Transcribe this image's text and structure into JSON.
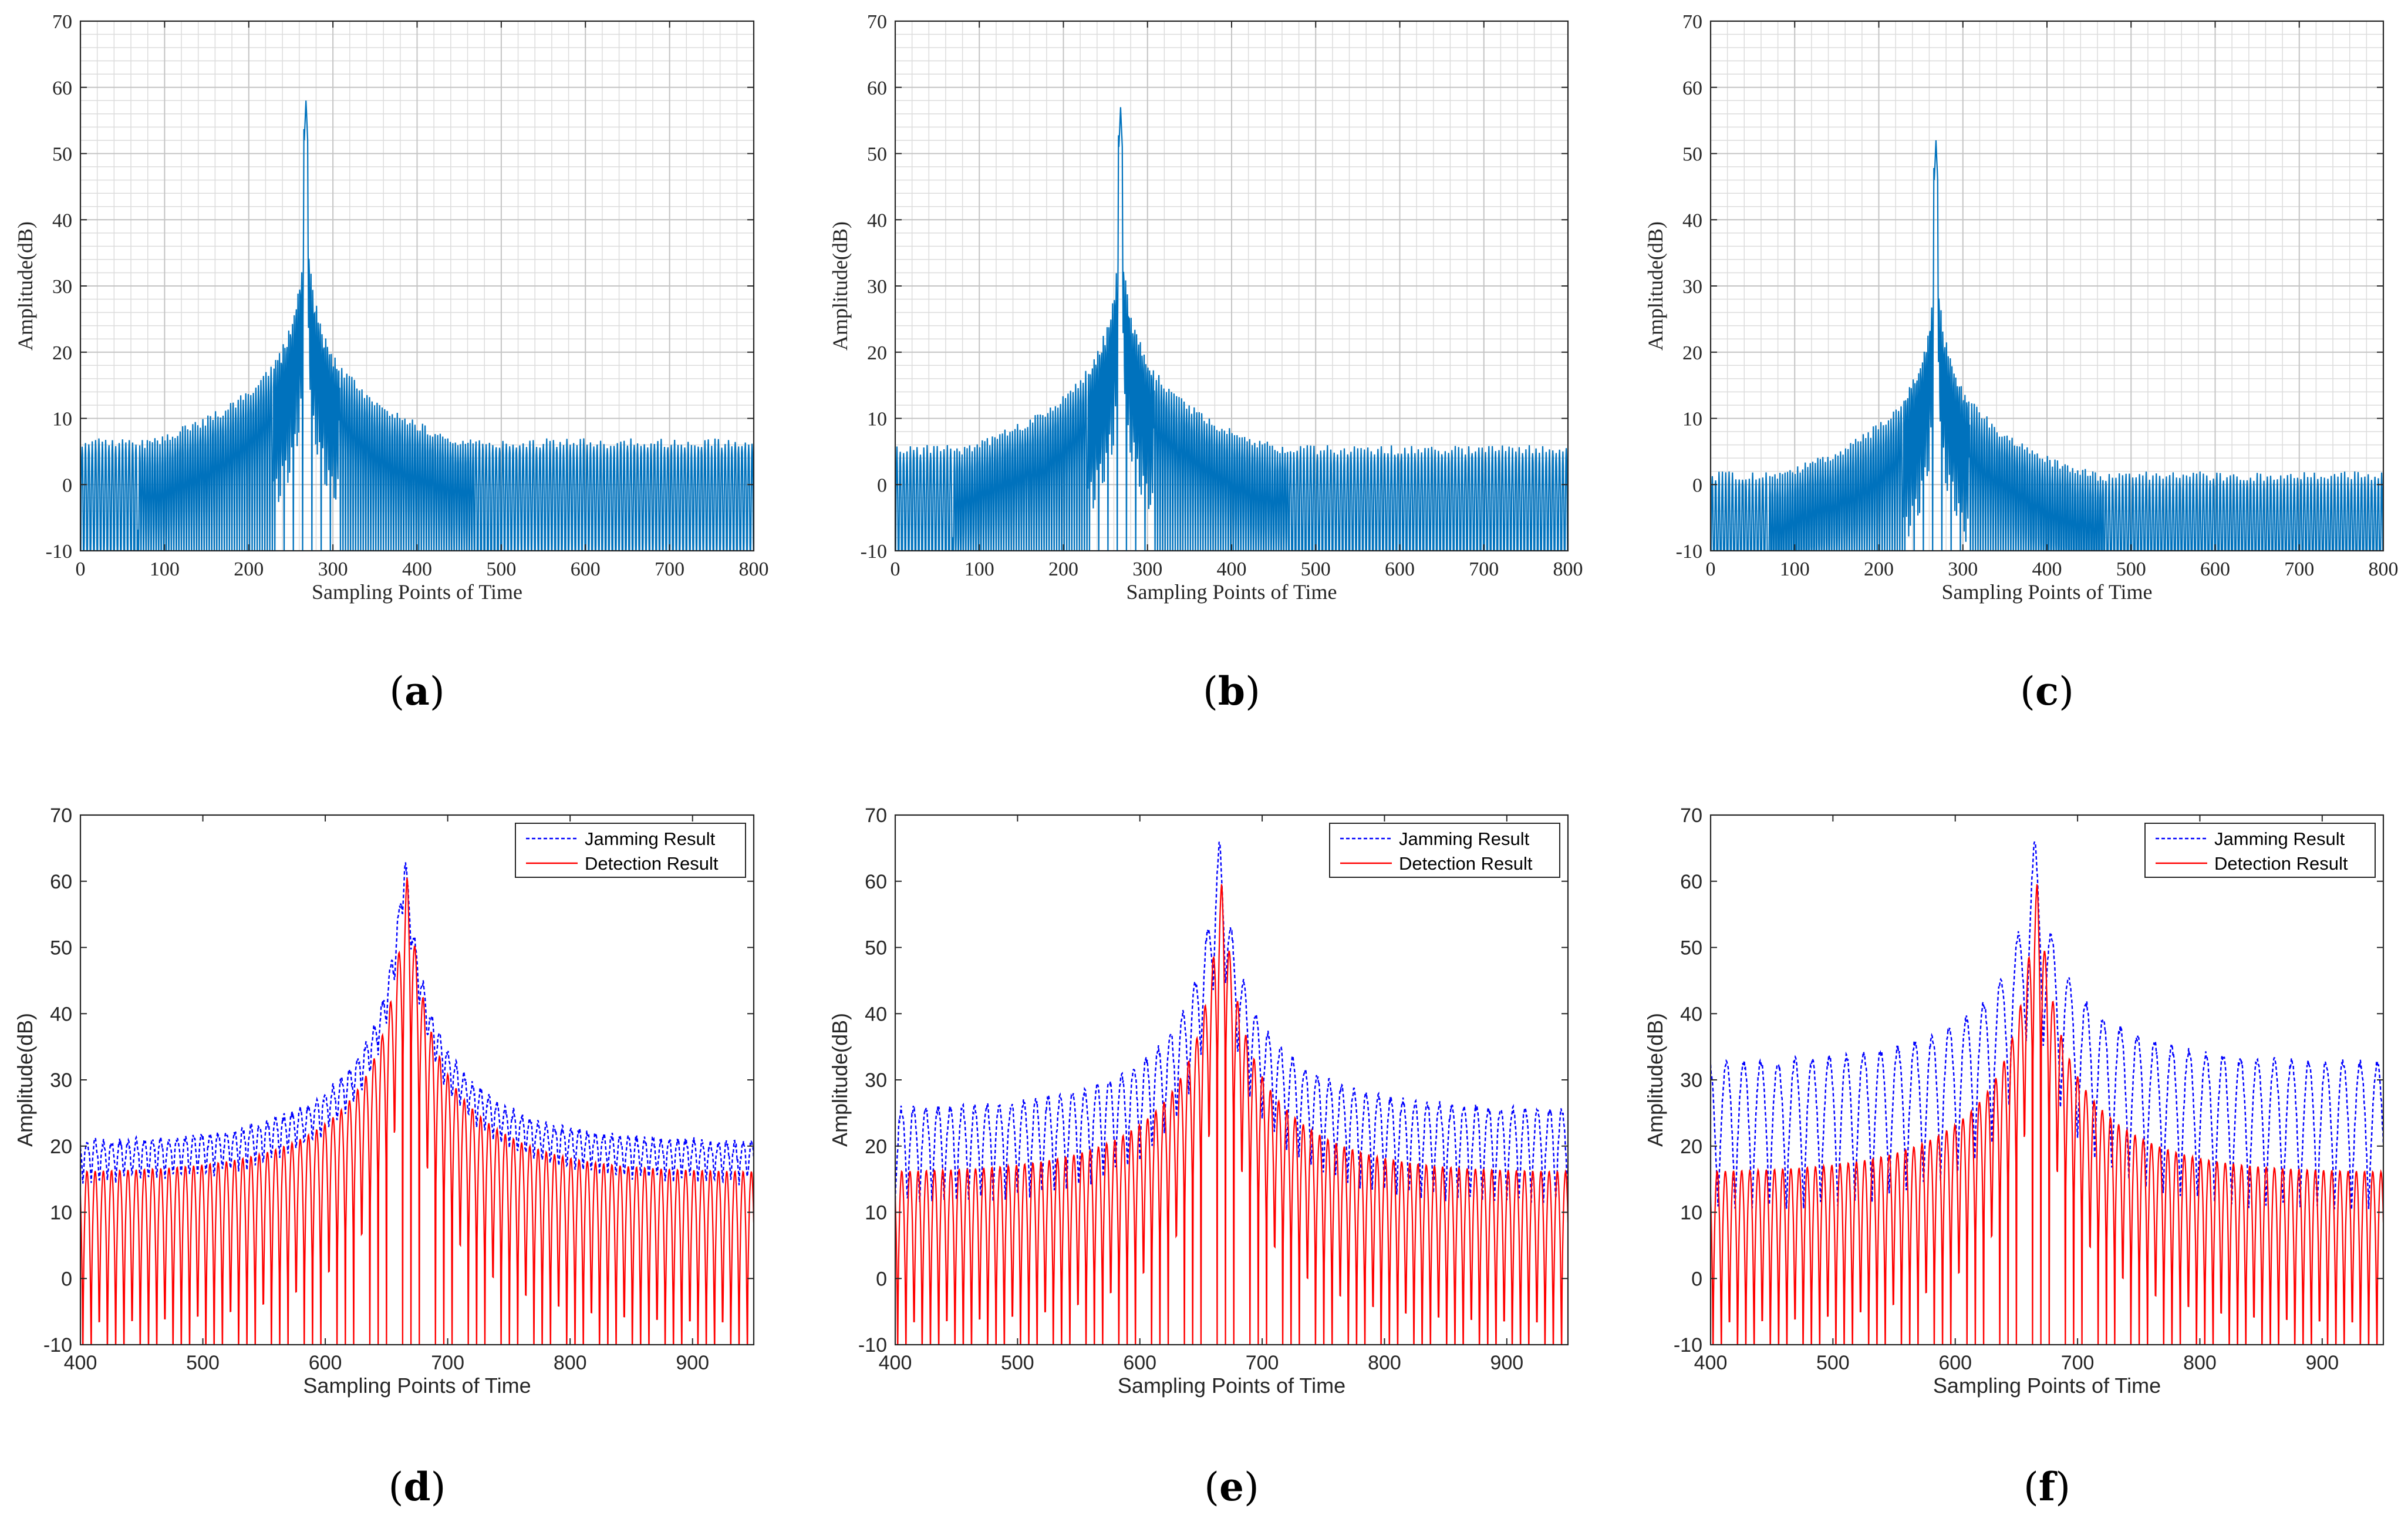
{
  "chart_data": [
    {
      "id": "a",
      "caption": "(a)",
      "type": "line",
      "xlabel": "Sampling Points of Time",
      "ylabel": "Amplitude(dB)",
      "xlim": [
        0,
        800
      ],
      "ylim": [
        -10,
        70
      ],
      "xticks": [
        0,
        100,
        200,
        300,
        400,
        500,
        600,
        700,
        800
      ],
      "yticks": [
        -10,
        0,
        10,
        20,
        30,
        40,
        50,
        60,
        70
      ],
      "grid": "on (major and minor)",
      "legend": null,
      "series": [
        {
          "color": "#0072BD",
          "style": "solid",
          "peak_x": 268,
          "peak_y": 58,
          "floor_y": 7,
          "shape": "sidelobe spectrum with main lobe near 268"
        }
      ]
    },
    {
      "id": "b",
      "caption": "(b)",
      "type": "line",
      "xlabel": "Sampling Points of Time",
      "ylabel": "Amplitude(dB)",
      "xlim": [
        0,
        800
      ],
      "ylim": [
        -10,
        70
      ],
      "xticks": [
        0,
        100,
        200,
        300,
        400,
        500,
        600,
        700,
        800
      ],
      "yticks": [
        -10,
        0,
        10,
        20,
        30,
        40,
        50,
        60,
        70
      ],
      "grid": "on (major and minor)",
      "legend": null,
      "series": [
        {
          "color": "#0072BD",
          "style": "solid",
          "peak_x": 268,
          "peak_y": 57,
          "floor_y": 6,
          "shape": "sidelobe spectrum with main lobe near 268"
        }
      ]
    },
    {
      "id": "c",
      "caption": "(c)",
      "type": "line",
      "xlabel": "Sampling Points of Time",
      "ylabel": "Amplitude(dB)",
      "xlim": [
        0,
        800
      ],
      "ylim": [
        -10,
        70
      ],
      "xticks": [
        0,
        100,
        200,
        300,
        400,
        500,
        600,
        700,
        800
      ],
      "yticks": [
        -10,
        0,
        10,
        20,
        30,
        40,
        50,
        60,
        70
      ],
      "grid": "on (major and minor)",
      "legend": null,
      "series": [
        {
          "color": "#0072BD",
          "style": "solid",
          "peak_x": 268,
          "peak_y": 52,
          "floor_y": 2,
          "shape": "sidelobe spectrum with main lobe near 268"
        }
      ]
    },
    {
      "id": "d",
      "caption": "(d)",
      "type": "line",
      "xlabel": "Sampling Points of Time",
      "ylabel": "Amplitude(dB)",
      "xlim": [
        400,
        950
      ],
      "ylim": [
        -10,
        70
      ],
      "xticks": [
        400,
        500,
        600,
        700,
        800,
        900
      ],
      "yticks": [
        -10,
        0,
        10,
        20,
        30,
        40,
        50,
        60,
        70
      ],
      "grid": "off",
      "legend": "top-right",
      "series": [
        {
          "name": "Jamming Result",
          "color": "#0000FF",
          "style": "dotted",
          "peak_x": 665,
          "peak_y": 63,
          "edge_y": 19,
          "ripple": 1
        },
        {
          "name": "Detection Result",
          "color": "#FF0000",
          "style": "solid",
          "peak_x": 667,
          "peak_y": 61,
          "edge_y": 16
        }
      ]
    },
    {
      "id": "e",
      "caption": "(e)",
      "type": "line",
      "xlabel": "Sampling Points of Time",
      "ylabel": "Amplitude(dB)",
      "xlim": [
        400,
        950
      ],
      "ylim": [
        -10,
        70
      ],
      "xticks": [
        400,
        500,
        600,
        700,
        800,
        900
      ],
      "yticks": [
        -10,
        0,
        10,
        20,
        30,
        40,
        50,
        60,
        70
      ],
      "grid": "off",
      "legend": "top-right",
      "series": [
        {
          "name": "Jamming Result",
          "color": "#0000FF",
          "style": "dotted",
          "peak_x": 665,
          "peak_y": 62,
          "edge_y": 21,
          "ripple": 2
        },
        {
          "name": "Detection Result",
          "color": "#FF0000",
          "style": "solid",
          "peak_x": 667,
          "peak_y": 60,
          "edge_y": 16
        }
      ]
    },
    {
      "id": "f",
      "caption": "(f)",
      "type": "line",
      "xlabel": "Sampling Points of Time",
      "ylabel": "Amplitude(dB)",
      "xlim": [
        400,
        950
      ],
      "ylim": [
        -10,
        70
      ],
      "xticks": [
        400,
        500,
        600,
        700,
        800,
        900
      ],
      "yticks": [
        -10,
        0,
        10,
        20,
        30,
        40,
        50,
        60,
        70
      ],
      "grid": "off",
      "legend": "top-right",
      "series": [
        {
          "name": "Jamming Result",
          "color": "#0000FF",
          "style": "dotted",
          "peak_x": 665,
          "peak_y": 58,
          "edge_y": 24,
          "ripple": 3
        },
        {
          "name": "Detection Result",
          "color": "#FF0000",
          "style": "solid",
          "peak_x": 667,
          "peak_y": 60,
          "edge_y": 16
        }
      ]
    }
  ]
}
